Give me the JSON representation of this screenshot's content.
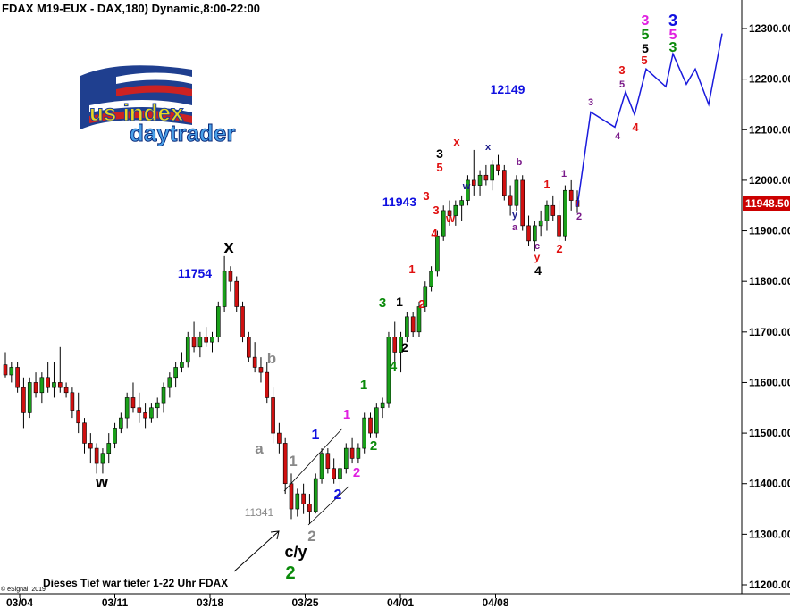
{
  "chart_data": {
    "type": "candlestick",
    "title": "FDAX M19-EUX - DAX,180) Dynamic,8:00-22:00",
    "current_price": "11948.50",
    "y_ticks": [
      "12300.00",
      "12200.00",
      "12100.00",
      "12000.00",
      "11900.00",
      "11800.00",
      "11700.00",
      "11600.00",
      "11500.00",
      "11400.00",
      "11300.00",
      "11200.00"
    ],
    "ylim": [
      11180,
      12330
    ],
    "x_ticks": [
      "03/04",
      "03/11",
      "03/18",
      "03/25",
      "04/01",
      "04/08"
    ],
    "candles": [
      {
        "o": 11635,
        "h": 11660,
        "l": 11610,
        "c": 11615
      },
      {
        "o": 11615,
        "h": 11640,
        "l": 11600,
        "c": 11630
      },
      {
        "o": 11630,
        "h": 11640,
        "l": 11580,
        "c": 11590
      },
      {
        "o": 11590,
        "h": 11610,
        "l": 11510,
        "c": 11540
      },
      {
        "o": 11540,
        "h": 11610,
        "l": 11530,
        "c": 11600
      },
      {
        "o": 11600,
        "h": 11620,
        "l": 11570,
        "c": 11580
      },
      {
        "o": 11580,
        "h": 11620,
        "l": 11560,
        "c": 11610
      },
      {
        "o": 11610,
        "h": 11640,
        "l": 11580,
        "c": 11590
      },
      {
        "o": 11590,
        "h": 11640,
        "l": 11570,
        "c": 11600
      },
      {
        "o": 11600,
        "h": 11670,
        "l": 11580,
        "c": 11590
      },
      {
        "o": 11590,
        "h": 11600,
        "l": 11570,
        "c": 11580
      },
      {
        "o": 11580,
        "h": 11590,
        "l": 11530,
        "c": 11545
      },
      {
        "o": 11545,
        "h": 11580,
        "l": 11500,
        "c": 11520
      },
      {
        "o": 11520,
        "h": 11530,
        "l": 11460,
        "c": 11480
      },
      {
        "o": 11480,
        "h": 11500,
        "l": 11440,
        "c": 11470
      },
      {
        "o": 11470,
        "h": 11480,
        "l": 11420,
        "c": 11440
      },
      {
        "o": 11440,
        "h": 11470,
        "l": 11420,
        "c": 11460
      },
      {
        "o": 11460,
        "h": 11500,
        "l": 11440,
        "c": 11480
      },
      {
        "o": 11480,
        "h": 11520,
        "l": 11470,
        "c": 11510
      },
      {
        "o": 11510,
        "h": 11540,
        "l": 11500,
        "c": 11530
      },
      {
        "o": 11530,
        "h": 11580,
        "l": 11510,
        "c": 11570
      },
      {
        "o": 11570,
        "h": 11600,
        "l": 11540,
        "c": 11550
      },
      {
        "o": 11550,
        "h": 11580,
        "l": 11520,
        "c": 11540
      },
      {
        "o": 11540,
        "h": 11560,
        "l": 11510,
        "c": 11530
      },
      {
        "o": 11530,
        "h": 11560,
        "l": 11520,
        "c": 11550
      },
      {
        "o": 11550,
        "h": 11570,
        "l": 11530,
        "c": 11560
      },
      {
        "o": 11560,
        "h": 11600,
        "l": 11540,
        "c": 11590
      },
      {
        "o": 11590,
        "h": 11620,
        "l": 11570,
        "c": 11610
      },
      {
        "o": 11610,
        "h": 11640,
        "l": 11590,
        "c": 11630
      },
      {
        "o": 11630,
        "h": 11660,
        "l": 11620,
        "c": 11640
      },
      {
        "o": 11640,
        "h": 11700,
        "l": 11630,
        "c": 11690
      },
      {
        "o": 11690,
        "h": 11720,
        "l": 11660,
        "c": 11670
      },
      {
        "o": 11670,
        "h": 11700,
        "l": 11650,
        "c": 11690
      },
      {
        "o": 11690,
        "h": 11710,
        "l": 11670,
        "c": 11680
      },
      {
        "o": 11680,
        "h": 11700,
        "l": 11660,
        "c": 11690
      },
      {
        "o": 11690,
        "h": 11760,
        "l": 11680,
        "c": 11750
      },
      {
        "o": 11750,
        "h": 11850,
        "l": 11740,
        "c": 11820
      },
      {
        "o": 11820,
        "h": 11830,
        "l": 11780,
        "c": 11800
      },
      {
        "o": 11800,
        "h": 11810,
        "l": 11740,
        "c": 11750
      },
      {
        "o": 11750,
        "h": 11760,
        "l": 11680,
        "c": 11690
      },
      {
        "o": 11690,
        "h": 11700,
        "l": 11640,
        "c": 11650
      },
      {
        "o": 11650,
        "h": 11680,
        "l": 11620,
        "c": 11630
      },
      {
        "o": 11630,
        "h": 11650,
        "l": 11600,
        "c": 11620
      },
      {
        "o": 11620,
        "h": 11640,
        "l": 11560,
        "c": 11570
      },
      {
        "o": 11570,
        "h": 11590,
        "l": 11480,
        "c": 11500
      },
      {
        "o": 11500,
        "h": 11520,
        "l": 11460,
        "c": 11480
      },
      {
        "o": 11480,
        "h": 11490,
        "l": 11380,
        "c": 11400
      },
      {
        "o": 11400,
        "h": 11420,
        "l": 11330,
        "c": 11350
      },
      {
        "o": 11350,
        "h": 11390,
        "l": 11335,
        "c": 11380
      },
      {
        "o": 11380,
        "h": 11400,
        "l": 11340,
        "c": 11360
      },
      {
        "o": 11360,
        "h": 11380,
        "l": 11320,
        "c": 11345
      },
      {
        "o": 11345,
        "h": 11420,
        "l": 11341,
        "c": 11410
      },
      {
        "o": 11410,
        "h": 11470,
        "l": 11400,
        "c": 11460
      },
      {
        "o": 11460,
        "h": 11470,
        "l": 11420,
        "c": 11430
      },
      {
        "o": 11430,
        "h": 11450,
        "l": 11400,
        "c": 11410
      },
      {
        "o": 11410,
        "h": 11440,
        "l": 11380,
        "c": 11430
      },
      {
        "o": 11430,
        "h": 11480,
        "l": 11420,
        "c": 11470
      },
      {
        "o": 11470,
        "h": 11490,
        "l": 11440,
        "c": 11450
      },
      {
        "o": 11450,
        "h": 11480,
        "l": 11440,
        "c": 11470
      },
      {
        "o": 11470,
        "h": 11540,
        "l": 11460,
        "c": 11530
      },
      {
        "o": 11530,
        "h": 11540,
        "l": 11490,
        "c": 11500
      },
      {
        "o": 11500,
        "h": 11560,
        "l": 11490,
        "c": 11550
      },
      {
        "o": 11550,
        "h": 11570,
        "l": 11530,
        "c": 11560
      },
      {
        "o": 11560,
        "h": 11700,
        "l": 11550,
        "c": 11690
      },
      {
        "o": 11690,
        "h": 11720,
        "l": 11640,
        "c": 11660
      },
      {
        "o": 11660,
        "h": 11700,
        "l": 11620,
        "c": 11690
      },
      {
        "o": 11690,
        "h": 11740,
        "l": 11680,
        "c": 11730
      },
      {
        "o": 11730,
        "h": 11740,
        "l": 11690,
        "c": 11700
      },
      {
        "o": 11700,
        "h": 11760,
        "l": 11690,
        "c": 11750
      },
      {
        "o": 11750,
        "h": 11800,
        "l": 11740,
        "c": 11790
      },
      {
        "o": 11790,
        "h": 11830,
        "l": 11780,
        "c": 11820
      },
      {
        "o": 11820,
        "h": 11900,
        "l": 11810,
        "c": 11890
      },
      {
        "o": 11890,
        "h": 11950,
        "l": 11880,
        "c": 11940
      },
      {
        "o": 11940,
        "h": 11960,
        "l": 11910,
        "c": 11930
      },
      {
        "o": 11930,
        "h": 11960,
        "l": 11910,
        "c": 11950
      },
      {
        "o": 11950,
        "h": 11970,
        "l": 11920,
        "c": 11960
      },
      {
        "o": 11960,
        "h": 12010,
        "l": 11950,
        "c": 12000
      },
      {
        "o": 12000,
        "h": 12060,
        "l": 11970,
        "c": 11990
      },
      {
        "o": 11990,
        "h": 12020,
        "l": 11970,
        "c": 12010
      },
      {
        "o": 12010,
        "h": 12030,
        "l": 11990,
        "c": 12000
      },
      {
        "o": 12000,
        "h": 12040,
        "l": 11980,
        "c": 12030
      },
      {
        "o": 12030,
        "h": 12050,
        "l": 12010,
        "c": 12020
      },
      {
        "o": 12020,
        "h": 12030,
        "l": 11960,
        "c": 11970
      },
      {
        "o": 11970,
        "h": 11990,
        "l": 11930,
        "c": 11950
      },
      {
        "o": 11950,
        "h": 12010,
        "l": 11940,
        "c": 12000
      },
      {
        "o": 12000,
        "h": 12010,
        "l": 11900,
        "c": 11910
      },
      {
        "o": 11910,
        "h": 11930,
        "l": 11870,
        "c": 11880
      },
      {
        "o": 11880,
        "h": 11920,
        "l": 11860,
        "c": 11910
      },
      {
        "o": 11910,
        "h": 11940,
        "l": 11890,
        "c": 11920
      },
      {
        "o": 11920,
        "h": 11960,
        "l": 11900,
        "c": 11950
      },
      {
        "o": 11950,
        "h": 11970,
        "l": 11920,
        "c": 11930
      },
      {
        "o": 11930,
        "h": 11960,
        "l": 11880,
        "c": 11890
      },
      {
        "o": 11890,
        "h": 11990,
        "l": 11880,
        "c": 11980
      },
      {
        "o": 11980,
        "h": 12000,
        "l": 11940,
        "c": 11960
      },
      {
        "o": 11960,
        "h": 11980,
        "l": 11935,
        "c": 11948
      }
    ],
    "projection": [
      11948,
      12135,
      12105,
      12175,
      12130,
      12220,
      12185,
      12250,
      12190,
      12220,
      12150,
      12290
    ],
    "annotations": [
      "w",
      "x",
      "b",
      "a",
      "1",
      "1",
      "2",
      "1",
      "2",
      "2",
      "c/y",
      "2",
      "11341",
      "11754",
      "3",
      "4",
      "1",
      "2",
      "1",
      "2",
      "1",
      "2",
      "4",
      "3",
      "3",
      "w",
      "4",
      "x",
      "5",
      "3",
      "x",
      "w",
      "12149",
      "11943",
      "b",
      "y",
      "a",
      "c",
      "y",
      "4",
      "2",
      "1",
      "2",
      "1",
      "3",
      "4",
      "3",
      "4",
      "5",
      "5",
      "3",
      "5",
      "5",
      "3",
      "5",
      "3"
    ],
    "logo_text": "us index daytrader",
    "note_text": "Dieses Tief war tiefer 1-22 Uhr FDAX",
    "copyright": "© eSignal, 2019"
  }
}
